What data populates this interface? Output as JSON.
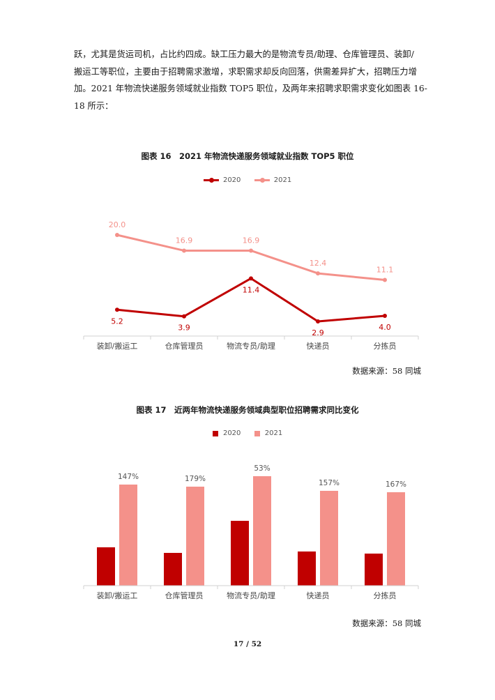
{
  "paragraph": {
    "lines": [
      "跃，尤其是货运司机，占比约四成。缺工压力最大的是物流专员/助理、仓库管理员、装卸/",
      "搬运工等职位，主要由于招聘需求激增，求职需求却反向回落，供需差异扩大，招聘压力增",
      "加。2021 年物流快递服务领域就业指数 TOP5 职位，及两年来招聘求职需求变化如图表 16-",
      "18 所示："
    ]
  },
  "figure16": {
    "title": "图表 16　2021 年物流快递服务领域就业指数 TOP5 职位",
    "source": "数据来源：58 同城"
  },
  "figure17": {
    "title": "图表 17　近两年物流快递服务领域典型职位招聘需求同比变化",
    "source": "数据来源：58 同城"
  },
  "colors": {
    "series2020": "#C00000",
    "series2021": "#F4918A",
    "axis": "#d0d0d0",
    "tick_text": "#555555"
  },
  "chart_data": [
    {
      "type": "line",
      "categories": [
        "装卸/搬运工",
        "仓库管理员",
        "物流专员/助理",
        "快递员",
        "分拣员"
      ],
      "series": [
        {
          "name": "2020",
          "values": [
            5.2,
            3.9,
            11.4,
            2.9,
            4.0
          ],
          "labels": [
            "5.2",
            "3.9",
            "11.4",
            "2.9",
            "4.0"
          ]
        },
        {
          "name": "2021",
          "values": [
            20.0,
            16.9,
            16.9,
            12.4,
            11.1
          ],
          "labels": [
            "20.0",
            "16.9",
            "16.9",
            "12.4",
            "11.1"
          ]
        }
      ],
      "ylim": [
        0,
        24
      ],
      "grid": false,
      "legend": "top-center"
    },
    {
      "type": "bar",
      "categories": [
        "装卸/搬运工",
        "仓库管理员",
        "物流专员/助理",
        "快递员",
        "分拣员"
      ],
      "series": [
        {
          "name": "2020",
          "values": [
            55,
            47,
            93,
            49,
            46
          ]
        },
        {
          "name": "2021",
          "values": [
            145,
            142,
            157,
            136,
            134
          ],
          "labels": [
            "147%",
            "179%",
            "53%",
            "157%",
            "167%"
          ]
        }
      ],
      "ylim": [
        0,
        190
      ],
      "grid": false,
      "legend": "top-center"
    }
  ],
  "page_number": "17 / 52"
}
